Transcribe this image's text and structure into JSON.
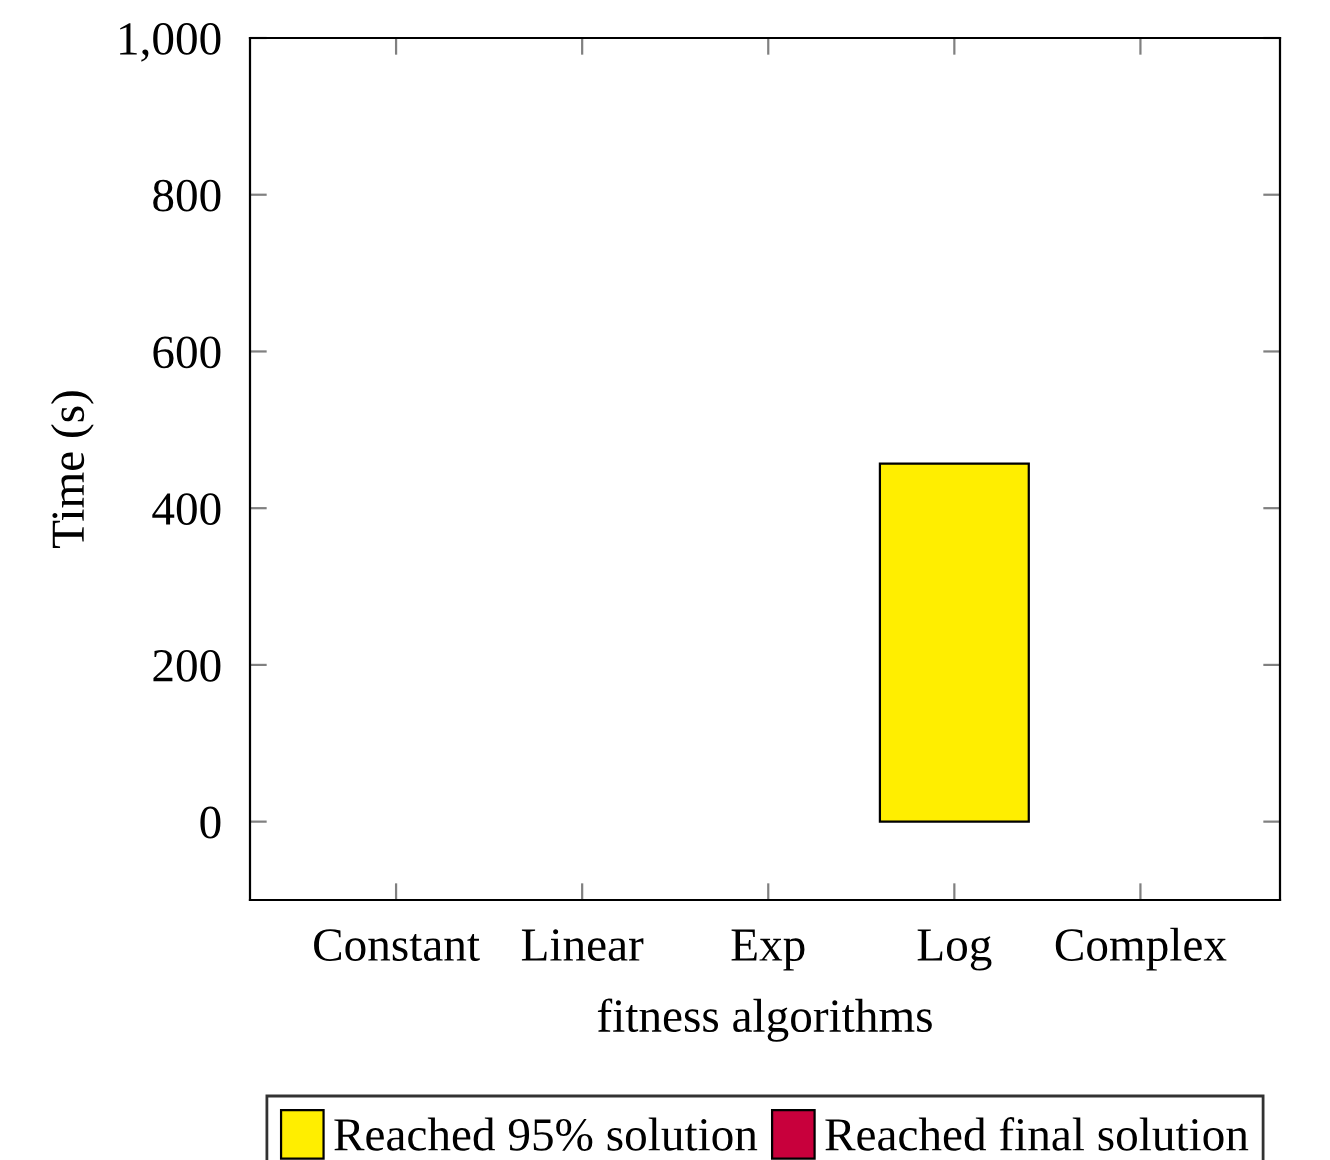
{
  "chart_data": {
    "type": "bar",
    "xlabel": "fitness algorithms",
    "ylabel": "Time (s)",
    "categories": [
      "Constant",
      "Linear",
      "Exp",
      "Log",
      "Complex"
    ],
    "series": [
      {
        "name": "Reached 95% solution",
        "color": "#ffee00",
        "values": [
          null,
          null,
          null,
          457,
          null
        ]
      },
      {
        "name": "Reached final solution",
        "color": "#c8003c",
        "values": [
          null,
          null,
          null,
          null,
          null
        ]
      }
    ],
    "ylim": [
      -100,
      1000
    ],
    "yticks": [
      0,
      200,
      400,
      600,
      800,
      {
        "value": 1000,
        "label": "1,000"
      }
    ],
    "legend": "bottom",
    "grid": false
  }
}
